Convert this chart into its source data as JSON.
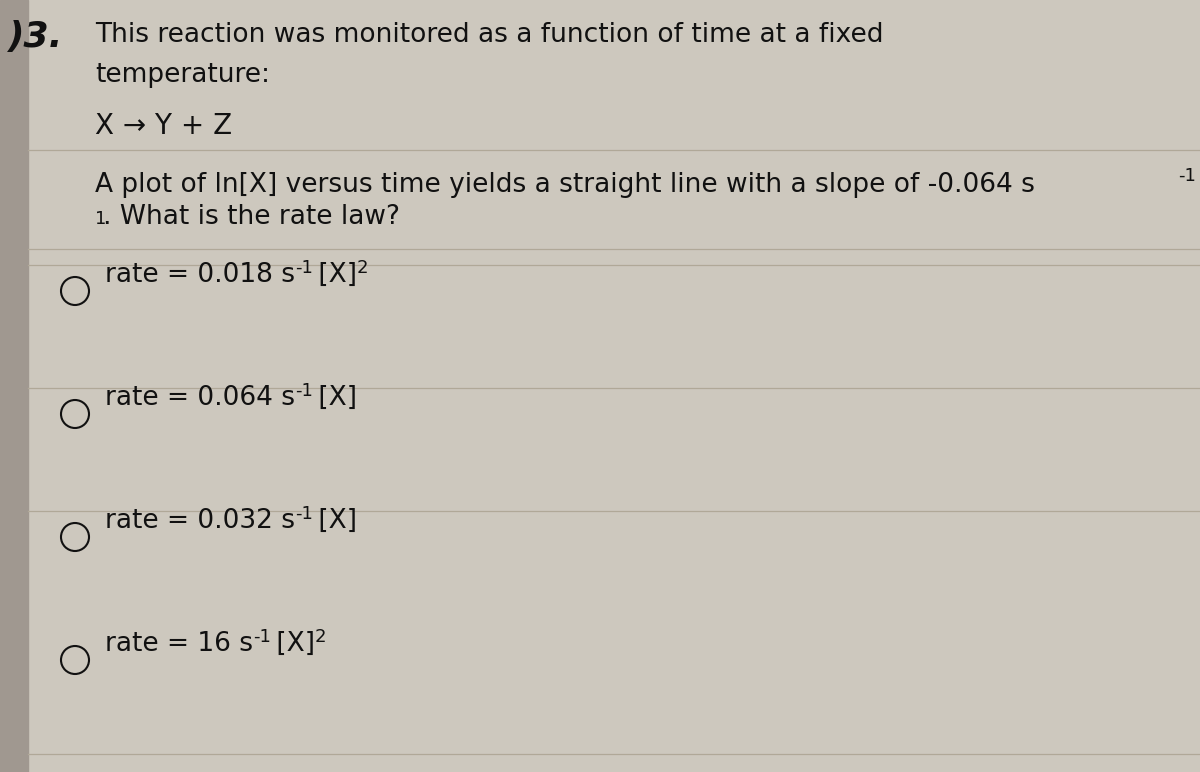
{
  "background_color": "#cdc8be",
  "left_bar_color": "#a09890",
  "question_number": ")3.",
  "title_line1": "This reaction was monitored as a function of time at a fixed",
  "title_line2": "temperature:",
  "reaction": "X → Y + Z",
  "desc1": "A plot of ln[X] versus time yields a straight line with a slope of -0.064 s",
  "desc_sup": "-1",
  "desc2": ". What is the rate law?",
  "option_mains": [
    "rate = 0.018 s",
    "rate = 0.064 s",
    "rate = 0.032 s",
    "rate = 16 s"
  ],
  "option_after": [
    " [X]",
    " [X]",
    " [X]",
    " [X]"
  ],
  "option_sup2": [
    "2",
    "",
    "",
    "2"
  ],
  "divider_color": "#b0a898",
  "text_color": "#111111",
  "font_size_main": 19,
  "font_size_options": 19,
  "font_size_sup": 13
}
